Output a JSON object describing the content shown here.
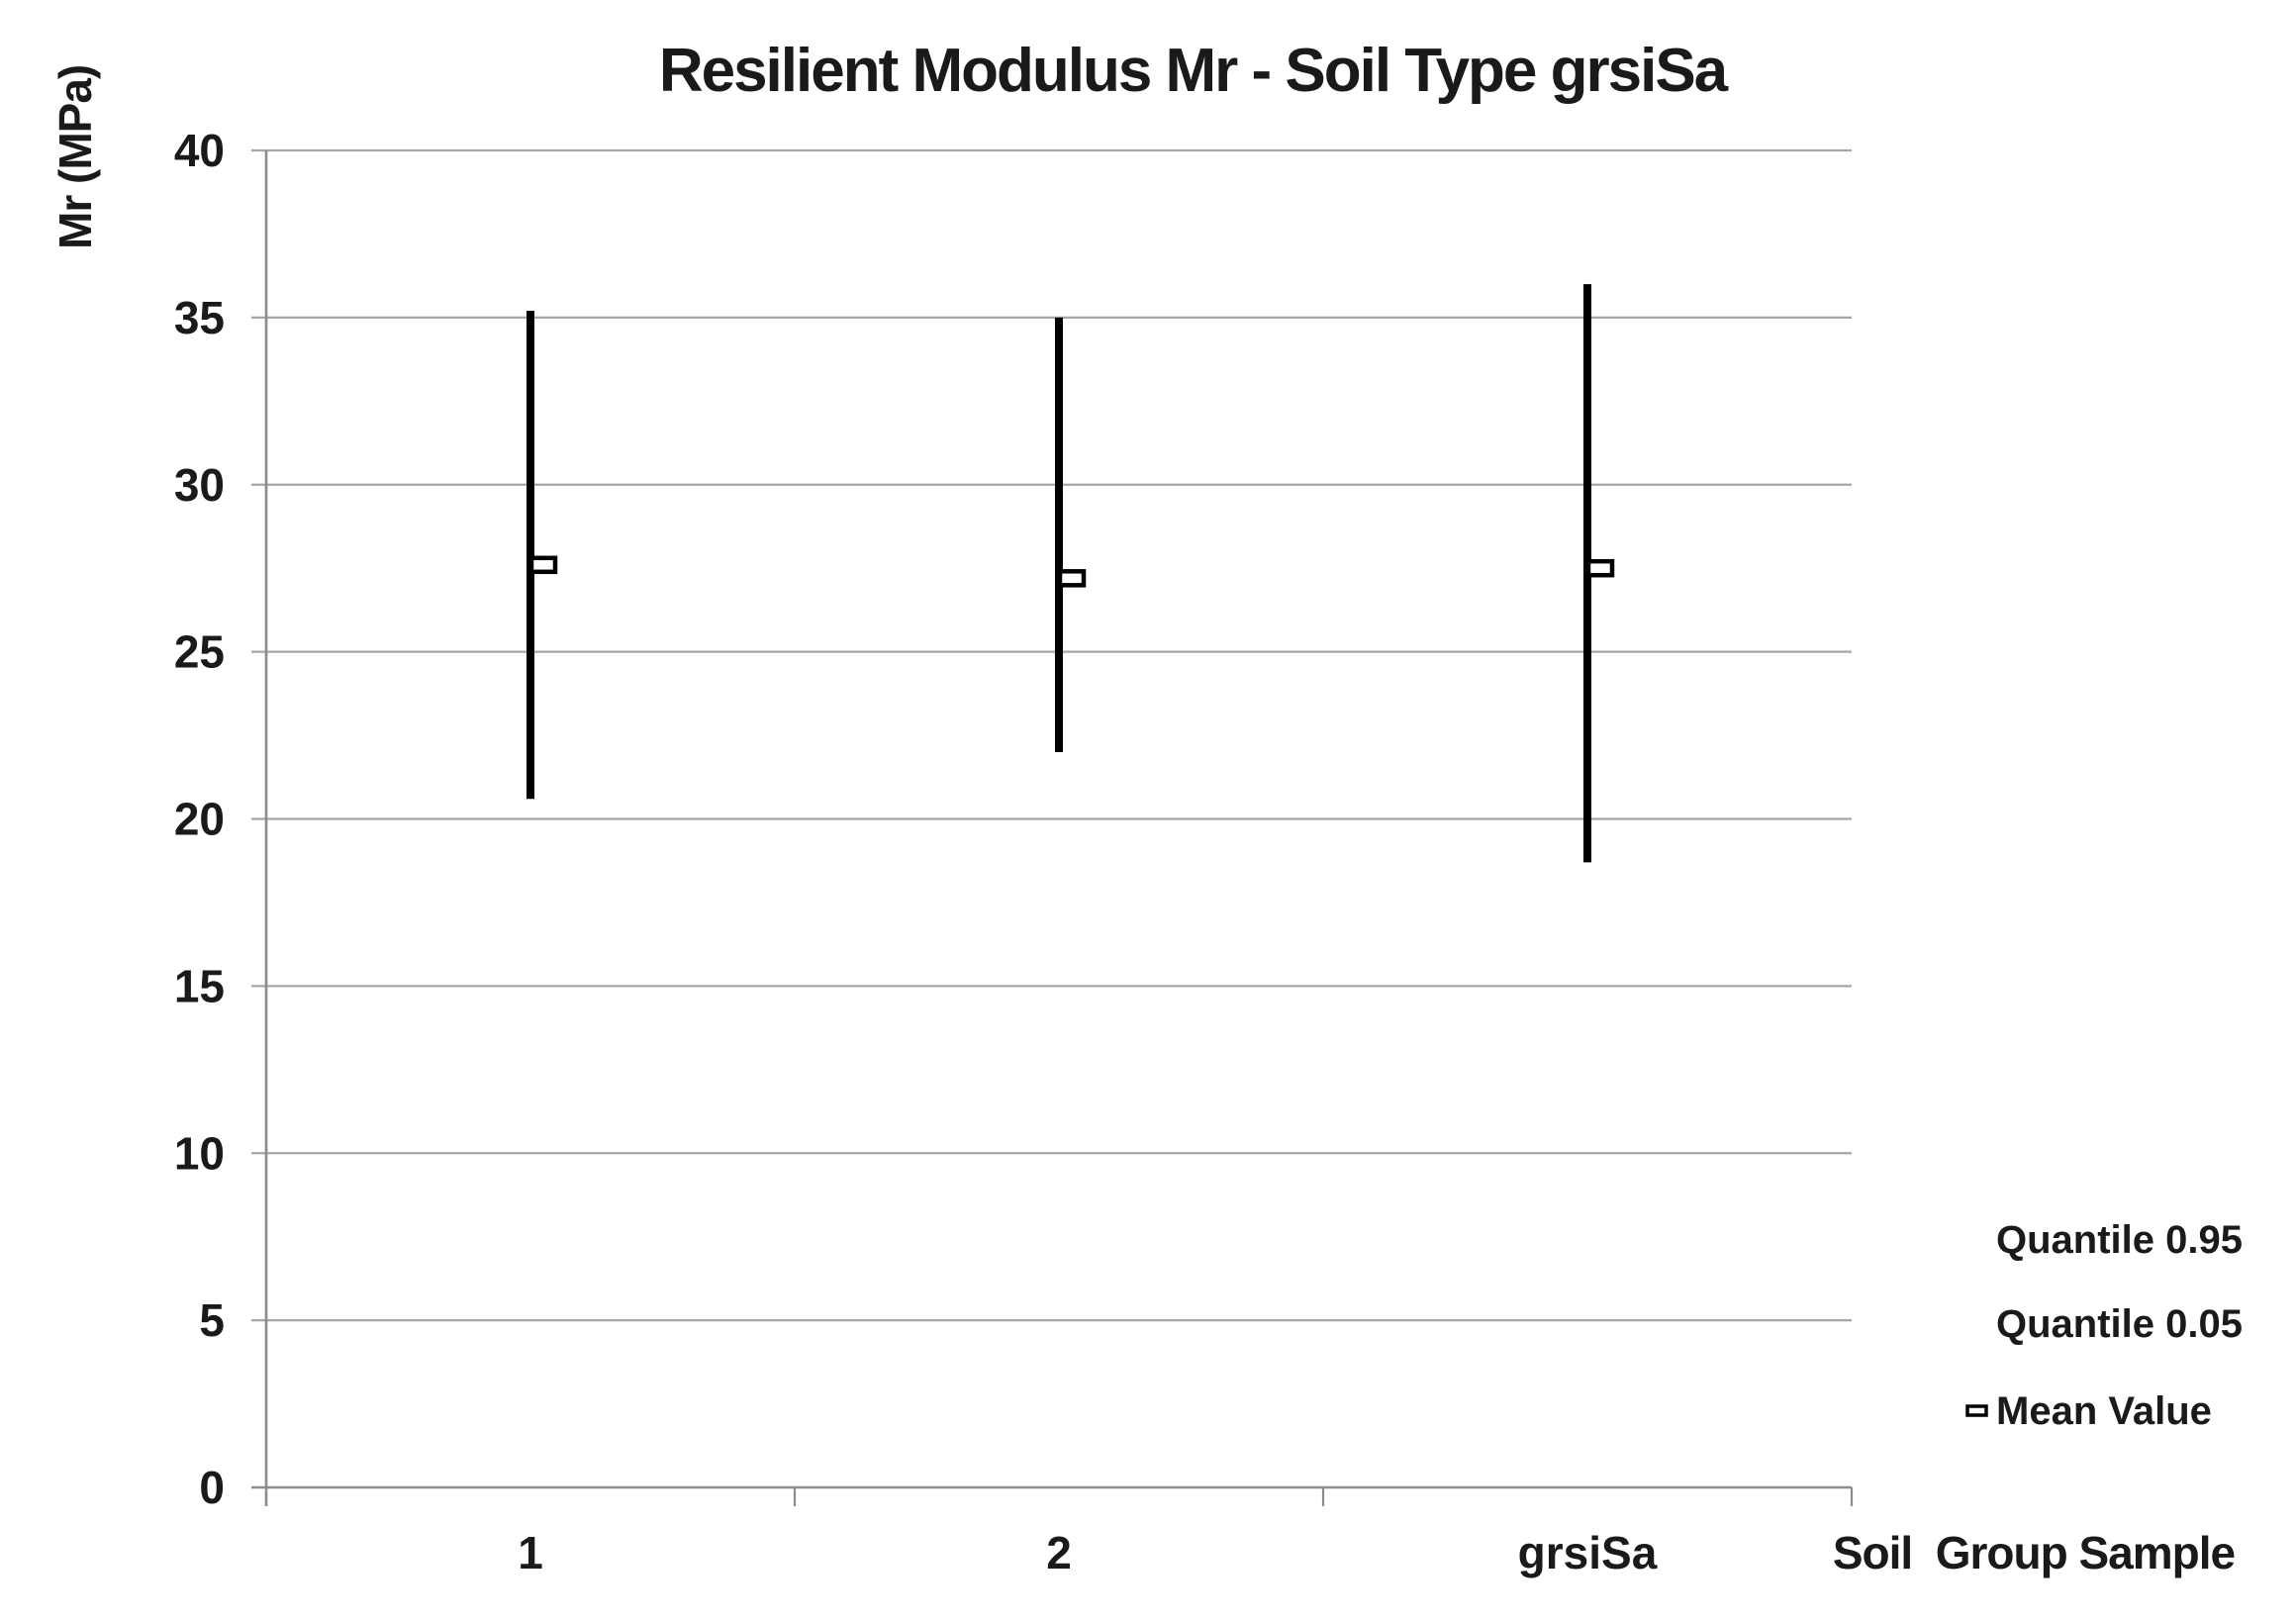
{
  "chart_data": {
    "type": "bar",
    "subtype": "quantile-range-hilo",
    "title": "Resilient Modulus Mr - Soil Type grsiSa",
    "ylabel": "Mr (MPa)",
    "xlabel": "Soil  Group Sample",
    "ylim": [
      0,
      40
    ],
    "ytick_step": 5,
    "yticks": [
      0,
      5,
      10,
      15,
      20,
      25,
      30,
      35,
      40
    ],
    "grid": "horizontal",
    "legend_position": "right-bottom",
    "categories": [
      "1",
      "2",
      "grsiSa"
    ],
    "series": [
      {
        "name": "Quantile 0.95",
        "role": "high",
        "values": [
          35.2,
          35.0,
          36.0
        ]
      },
      {
        "name": "Quantile 0.05",
        "role": "low",
        "values": [
          20.6,
          22.0,
          18.7
        ]
      },
      {
        "name": "Mean Value",
        "role": "mean",
        "values": [
          27.6,
          27.2,
          27.5
        ]
      }
    ],
    "colors": {
      "bar": "#000000",
      "mean_marker_fill": "#ffffff",
      "grid": "#a6a6a6",
      "axis": "#8c8c8c",
      "text": "#1a1a1a",
      "background": "#ffffff"
    }
  }
}
